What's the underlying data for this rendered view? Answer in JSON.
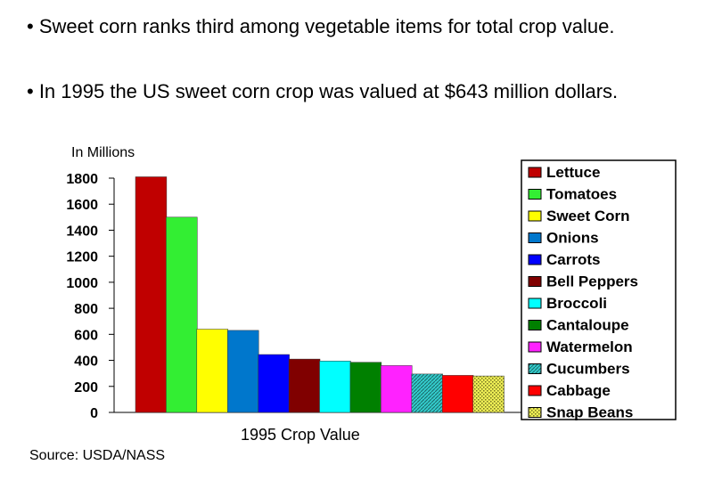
{
  "bullets": [
    "• Sweet corn ranks third among vegetable items for total crop value.",
    "• In 1995 the US sweet corn crop was valued at $643 million dollars."
  ],
  "source": "Source: USDA/NASS",
  "chart_data": {
    "type": "bar",
    "title": "",
    "ylabel": "In Millions",
    "xlabel": "1995 Crop Value",
    "ylim": [
      0,
      1800
    ],
    "yticks": [
      0,
      200,
      400,
      600,
      800,
      1000,
      1200,
      1400,
      1600,
      1800
    ],
    "legend_position": "right",
    "grid": false,
    "series": [
      {
        "name": "Lettuce",
        "value": 1810,
        "color": "#c00000"
      },
      {
        "name": "Tomatoes",
        "value": 1500,
        "color": "#33ee33"
      },
      {
        "name": "Sweet Corn",
        "value": 640,
        "color": "#ffff00"
      },
      {
        "name": "Onions",
        "value": 630,
        "color": "#0077cc"
      },
      {
        "name": "Carrots",
        "value": 445,
        "color": "#0000ff"
      },
      {
        "name": "Bell Peppers",
        "value": 410,
        "color": "#800000"
      },
      {
        "name": "Broccoli",
        "value": 395,
        "color": "#00ffff"
      },
      {
        "name": "Cantaloupe",
        "value": 385,
        "color": "#008000"
      },
      {
        "name": "Watermelon",
        "value": 360,
        "color": "#ff22ff"
      },
      {
        "name": "Cucumbers",
        "value": 295,
        "color": "#33cccc",
        "pattern": "hatch"
      },
      {
        "name": "Cabbage",
        "value": 285,
        "color": "#ff0000"
      },
      {
        "name": "Snap Beans",
        "value": 280,
        "color": "#dddd44",
        "pattern": "dots"
      }
    ]
  }
}
